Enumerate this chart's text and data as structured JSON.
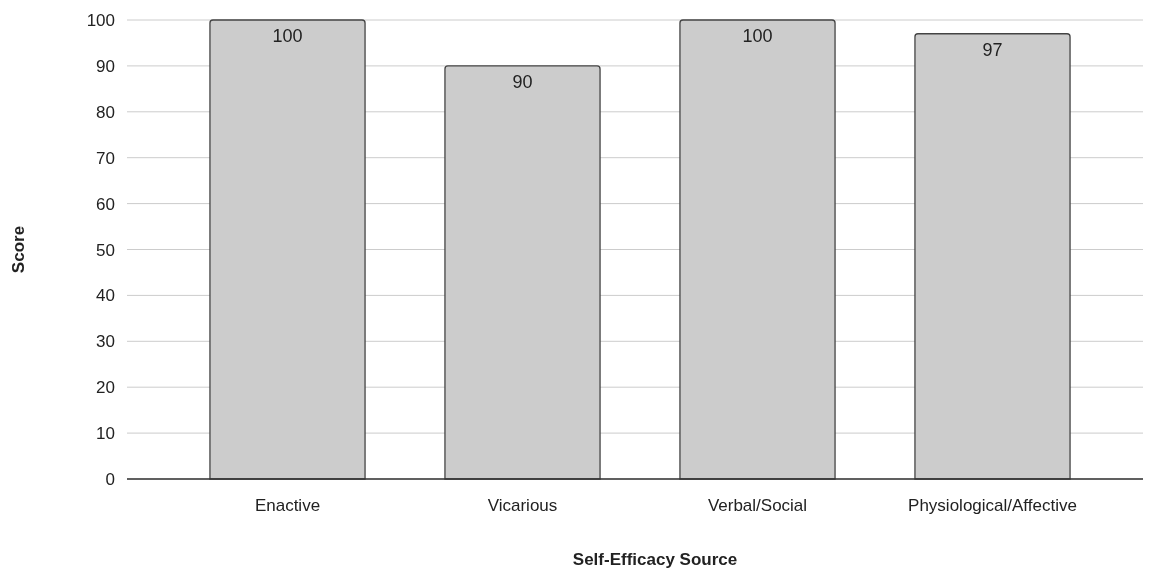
{
  "chart_data": {
    "type": "bar",
    "xlabel": "Self-Efficacy Source",
    "ylabel": "Score",
    "categories": [
      "Enactive",
      "Vicarious",
      "Verbal/Social",
      "Physiological/Affective"
    ],
    "values": [
      100,
      90,
      100,
      97
    ],
    "color": "#cccccc",
    "ylim": [
      0,
      100
    ],
    "yticks": [
      0,
      10,
      20,
      30,
      40,
      50,
      60,
      70,
      80,
      90,
      100
    ],
    "grid": "y",
    "data_labels": true
  }
}
